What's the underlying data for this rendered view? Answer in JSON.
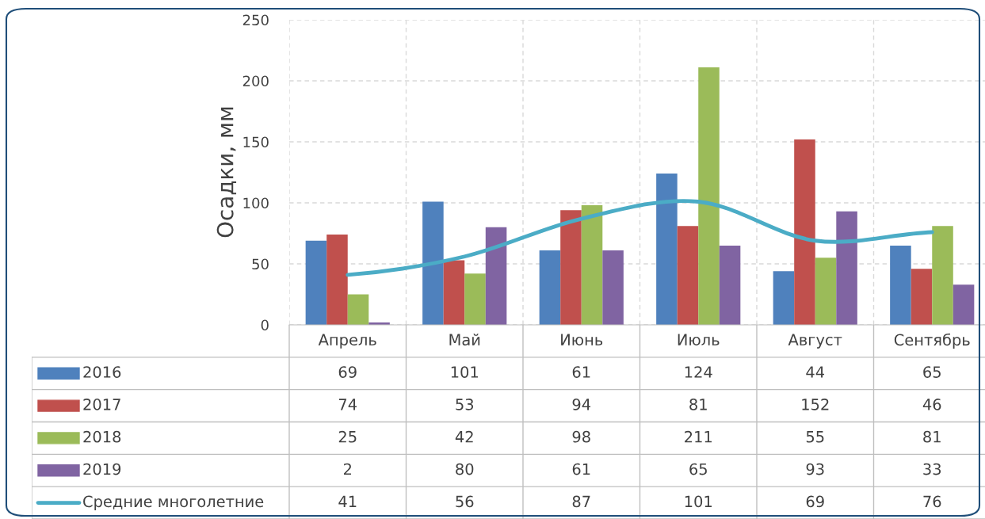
{
  "chart_data": {
    "type": "bar",
    "ylabel": "Осадки, мм",
    "categories": [
      "Апрель",
      "Май",
      "Июнь",
      "Июль",
      "Август",
      "Сентябрь"
    ],
    "series": [
      {
        "name": "2016",
        "color": "#4f81bd",
        "values": [
          69,
          101,
          61,
          124,
          44,
          65
        ]
      },
      {
        "name": "2017",
        "color": "#c0504d",
        "values": [
          74,
          53,
          94,
          81,
          152,
          46
        ]
      },
      {
        "name": "2018",
        "color": "#9bbb59",
        "values": [
          25,
          42,
          98,
          211,
          55,
          81
        ]
      },
      {
        "name": "2019",
        "color": "#8064a2",
        "values": [
          2,
          80,
          61,
          65,
          93,
          33
        ]
      },
      {
        "name": "Средние многолетние",
        "type": "line",
        "color": "#4bacc6",
        "values": [
          41,
          56,
          87,
          101,
          69,
          76
        ]
      }
    ],
    "ylim": [
      0,
      250
    ],
    "yticks": [
      0,
      50,
      100,
      150,
      200,
      250
    ],
    "grid": true,
    "data_labels": true,
    "legend": "bottom left"
  }
}
